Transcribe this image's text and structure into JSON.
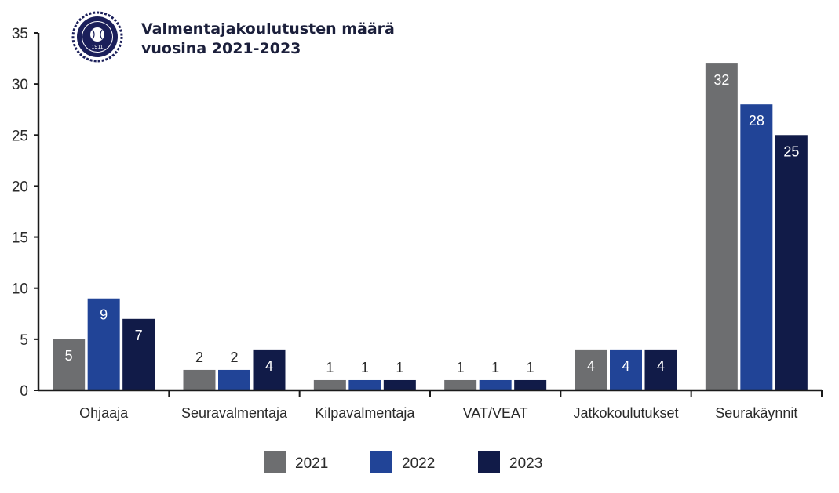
{
  "chart_data": {
    "type": "bar",
    "title_line1": "Valmentajakoulutusten määrä",
    "title_line2": "vuosina 2021-2023",
    "categories": [
      "Ohjaaja",
      "Seuravalmentaja",
      "Kilpavalmentaja",
      "VAT/VEAT",
      "Jatkokoulutukset",
      "Seurakäynnit"
    ],
    "series": [
      {
        "name": "2021",
        "color": "#6d6e70",
        "values": [
          5,
          2,
          1,
          1,
          4,
          32
        ]
      },
      {
        "name": "2022",
        "color": "#214497",
        "values": [
          9,
          2,
          1,
          1,
          4,
          28
        ]
      },
      {
        "name": "2023",
        "color": "#111b48",
        "values": [
          7,
          4,
          1,
          1,
          4,
          25
        ]
      }
    ],
    "ylim": [
      0,
      35
    ],
    "yticks": [
      0,
      5,
      10,
      15,
      20,
      25,
      30,
      35
    ],
    "grid": false,
    "legend": "bottom",
    "data_labels": true
  },
  "logo": {
    "year_text": "1911"
  }
}
